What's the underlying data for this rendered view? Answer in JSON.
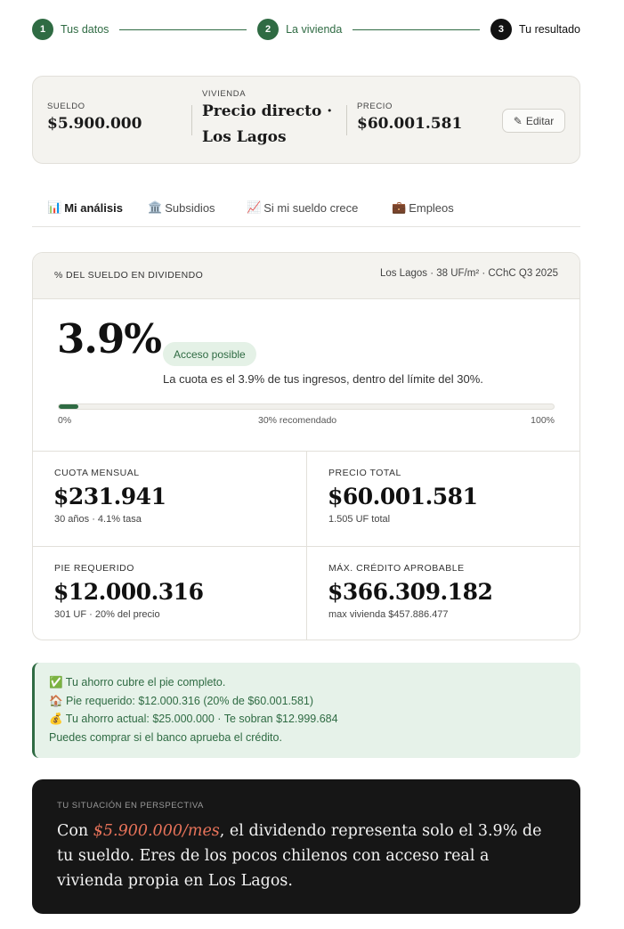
{
  "stepper": {
    "steps": [
      {
        "number": "1",
        "label": "Tus datos",
        "state": "done"
      },
      {
        "number": "2",
        "label": "La vivienda",
        "state": "done"
      },
      {
        "number": "3",
        "label": "Tu resultado",
        "state": "current"
      }
    ]
  },
  "summary": {
    "salary_label": "SUELDO",
    "salary_value": "$5.900.000",
    "housing_label": "VIVIENDA",
    "housing_value_line1": "Precio directo ·",
    "housing_value_line2": "Los Lagos",
    "price_label": "PRECIO",
    "price_value": "$60.001.581",
    "edit_label": "Editar",
    "edit_icon": "✎"
  },
  "tabs": [
    {
      "icon": "📊",
      "label": "Mi análisis",
      "active": true
    },
    {
      "icon": "🏛️",
      "label": "Subsidios",
      "active": false
    },
    {
      "icon": "📈",
      "label": "Si mi sueldo crece",
      "active": false
    },
    {
      "icon": "💼",
      "label": "Empleos",
      "active": false
    }
  ],
  "analysis": {
    "header_left": "% DEL SUELDO EN DIVIDENDO",
    "header_right": "Los Lagos · 38 UF/m² · CChC Q3 2025",
    "percent": "3.9%",
    "percent_value": 3.9,
    "status_pill": "Acceso posible",
    "description": "La cuota es el 3.9% de tus ingresos, dentro del límite del 30%.",
    "bar_min": "0%",
    "bar_mid": "30% recomendado",
    "bar_max": "100%",
    "cells": [
      {
        "label": "CUOTA MENSUAL",
        "value": "$231.941",
        "sub": "30 años · 4.1% tasa"
      },
      {
        "label": "PRECIO TOTAL",
        "value": "$60.001.581",
        "sub": "1.505 UF total"
      },
      {
        "label": "PIE REQUERIDO",
        "value": "$12.000.316",
        "sub": "301 UF · 20% del precio"
      },
      {
        "label": "MÁX. CRÉDITO APROBABLE",
        "value": "$366.309.182",
        "sub": "max vivienda $457.886.477"
      }
    ]
  },
  "alert": {
    "lines": [
      "✅ Tu ahorro cubre el pie completo.",
      "🏠 Pie requerido: $12.000.316 (20% de $60.001.581)",
      "💰 Tu ahorro actual: $25.000.000 · Te sobran $12.999.684",
      "Puedes comprar si el banco aprueba el crédito."
    ]
  },
  "perspective": {
    "label": "TU SITUACIÓN EN PERSPECTIVA",
    "text_before": "Con ",
    "highlight": "$5.900.000/mes",
    "text_after": ", el dividendo representa solo el 3.9% de tu sueldo. Eres de los pocos chilenos con acceso real a vivienda propia en Los Lagos."
  },
  "colors": {
    "accent_green": "#2f6b43",
    "highlight_coral": "#e8735a",
    "dark_panel": "#161616"
  }
}
